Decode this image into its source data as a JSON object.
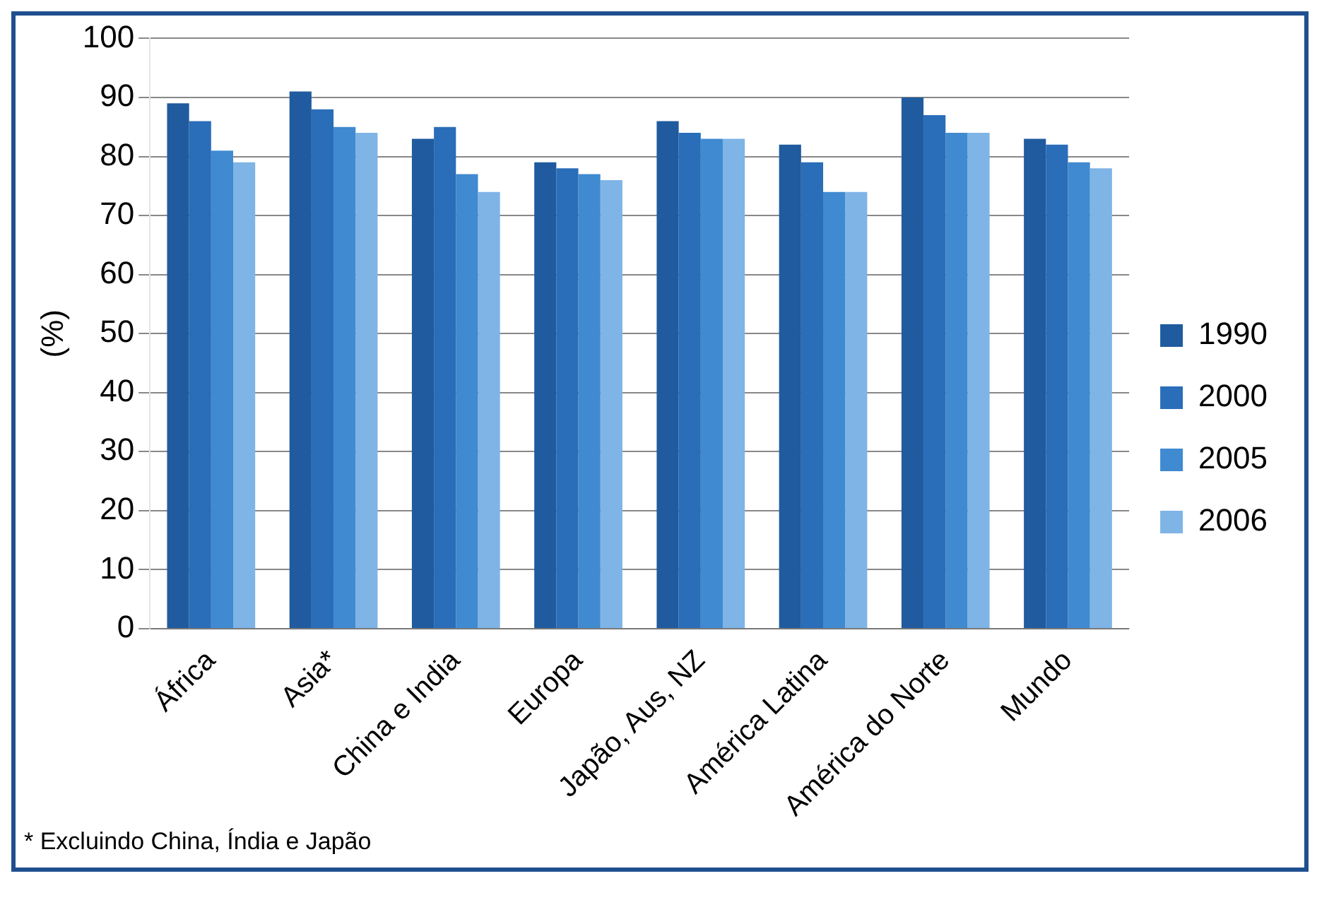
{
  "chart_data": {
    "type": "bar",
    "ylabel": "(%)",
    "categories": [
      "África",
      "Asia*",
      "China e India",
      "Europa",
      "Japão, Aus, NZ",
      "América Latina",
      "América do Norte",
      "Mundo"
    ],
    "series": [
      {
        "name": "1990",
        "color": "#1f5b9e",
        "values": [
          89,
          91,
          83,
          79,
          86,
          82,
          90,
          83
        ]
      },
      {
        "name": "2000",
        "color": "#2a6db8",
        "values": [
          86,
          88,
          85,
          78,
          84,
          79,
          87,
          82
        ]
      },
      {
        "name": "2005",
        "color": "#3f8ad0",
        "values": [
          81,
          85,
          77,
          77,
          83,
          74,
          84,
          79
        ]
      },
      {
        "name": "2006",
        "color": "#7fb4e6",
        "values": [
          79,
          84,
          74,
          76,
          83,
          74,
          84,
          78
        ]
      }
    ],
    "ylim": [
      0,
      100
    ],
    "yticks": [
      0,
      10,
      20,
      30,
      40,
      50,
      60,
      70,
      80,
      90,
      100
    ],
    "grid": "y",
    "legend": "right",
    "annotations": [
      "* Excluindo China, Índia e Japão"
    ]
  }
}
